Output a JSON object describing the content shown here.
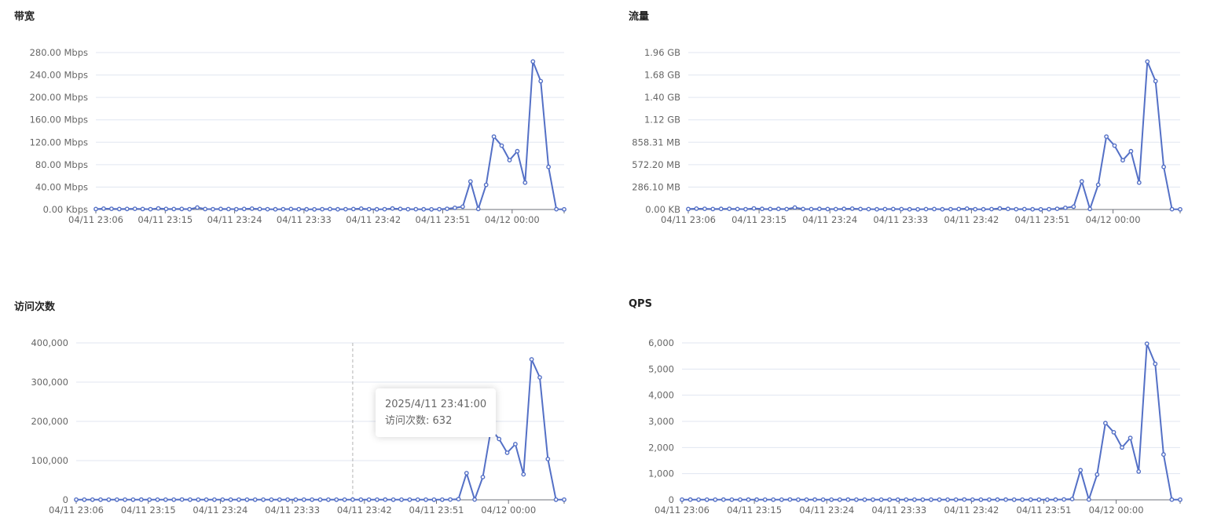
{
  "colors": {
    "series": "#5470c6",
    "grid": "#e0e6f1",
    "axis": "#6e7079",
    "crosshair": "#b3b3b3"
  },
  "chart_data": [
    {
      "type": "line",
      "title": "带宽",
      "x_labels": [
        "04/11 23:06",
        "04/11 23:15",
        "04/11 23:24",
        "04/11 23:33",
        "04/11 23:42",
        "04/11 23:51",
        "04/12 00:00"
      ],
      "y_unit": "Mbps",
      "yticks": [
        "0.00 Kbps",
        "40.00 Mbps",
        "80.00 Mbps",
        "120.00 Mbps",
        "160.00 Mbps",
        "200.00 Mbps",
        "240.00 Mbps",
        "280.00 Mbps"
      ],
      "ylim": [
        0,
        280
      ],
      "grid": true,
      "values": [
        0.8,
        1.5,
        1.2,
        0.8,
        1,
        1.2,
        0.8,
        0.5,
        2,
        1,
        0.8,
        1,
        0.6,
        3.5,
        0.8,
        0.6,
        1,
        0.8,
        0.6,
        1,
        1.5,
        0.8,
        0.6,
        0.4,
        0.6,
        0.8,
        0.6,
        0.4,
        0.3,
        0.6,
        0.8,
        0.4,
        0.5,
        0.8,
        1.5,
        0.5,
        0.4,
        0.6,
        1.8,
        1,
        0.5,
        0.6,
        0.4,
        0.3,
        0.5,
        1.2,
        3,
        5,
        50,
        1,
        44,
        130,
        114,
        88,
        104,
        48,
        264,
        229,
        76,
        0.5,
        0.3
      ]
    },
    {
      "type": "line",
      "title": "流量",
      "x_labels": [
        "04/11 23:06",
        "04/11 23:15",
        "04/11 23:24",
        "04/11 23:33",
        "04/11 23:42",
        "04/11 23:51",
        "04/12 00:00"
      ],
      "y_unit": "MB",
      "yticks": [
        "0.00 KB",
        "286.10 MB",
        "572.20 MB",
        "858.31 MB",
        "1.12 GB",
        "1.40 GB",
        "1.68 GB",
        "1.96 GB"
      ],
      "ylim": [
        0,
        2002.72
      ],
      "grid": true,
      "values": [
        6,
        11,
        9,
        6,
        8,
        9,
        6,
        4,
        14,
        8,
        6,
        8,
        5,
        25,
        6,
        5,
        8,
        6,
        5,
        8,
        11,
        6,
        5,
        3,
        5,
        6,
        5,
        3,
        2,
        5,
        6,
        3,
        4,
        6,
        11,
        4,
        3,
        5,
        13,
        8,
        4,
        5,
        3,
        2,
        4,
        9,
        21,
        36,
        358,
        7,
        315,
        930,
        815,
        629,
        744,
        343,
        1888,
        1638,
        544,
        4,
        2
      ]
    },
    {
      "type": "line",
      "title": "访问次数",
      "x_labels": [
        "04/11 23:06",
        "04/11 23:15",
        "04/11 23:24",
        "04/11 23:33",
        "04/11 23:42",
        "04/11 23:51",
        "04/12 00:00"
      ],
      "yticks": [
        "0",
        "100,000",
        "200,000",
        "300,000",
        "400,000"
      ],
      "ylim": [
        0,
        400000
      ],
      "grid": true,
      "values": [
        400,
        500,
        450,
        400,
        420,
        450,
        400,
        350,
        600,
        450,
        400,
        420,
        380,
        800,
        420,
        380,
        450,
        400,
        380,
        420,
        500,
        420,
        380,
        350,
        380,
        420,
        380,
        350,
        330,
        380,
        420,
        350,
        360,
        420,
        632,
        360,
        350,
        380,
        600,
        450,
        360,
        380,
        350,
        330,
        360,
        480,
        900,
        1800,
        68000,
        800,
        58000,
        180000,
        155000,
        120000,
        142000,
        65000,
        358000,
        312000,
        104000,
        500,
        350
      ],
      "tooltip": {
        "time": "2025/4/11 23:41:00",
        "series_name": "访问次数",
        "value": "632",
        "index": 34
      }
    },
    {
      "type": "line",
      "title": "QPS",
      "x_labels": [
        "04/11 23:06",
        "04/11 23:15",
        "04/11 23:24",
        "04/11 23:33",
        "04/11 23:42",
        "04/11 23:51",
        "04/12 00:00"
      ],
      "yticks": [
        "0",
        "1,000",
        "2,000",
        "3,000",
        "4,000",
        "5,000",
        "6,000"
      ],
      "ylim": [
        0,
        6000
      ],
      "grid": true,
      "values": [
        7,
        8,
        7,
        7,
        7,
        8,
        7,
        6,
        10,
        8,
        7,
        7,
        6,
        13,
        7,
        6,
        8,
        7,
        6,
        7,
        8,
        7,
        6,
        6,
        6,
        7,
        6,
        6,
        5,
        6,
        7,
        6,
        6,
        7,
        11,
        6,
        6,
        6,
        10,
        8,
        6,
        6,
        6,
        5,
        6,
        8,
        15,
        30,
        1133,
        13,
        967,
        2933,
        2583,
        2000,
        2367,
        1083,
        5967,
        5200,
        1733,
        8,
        6
      ]
    }
  ]
}
